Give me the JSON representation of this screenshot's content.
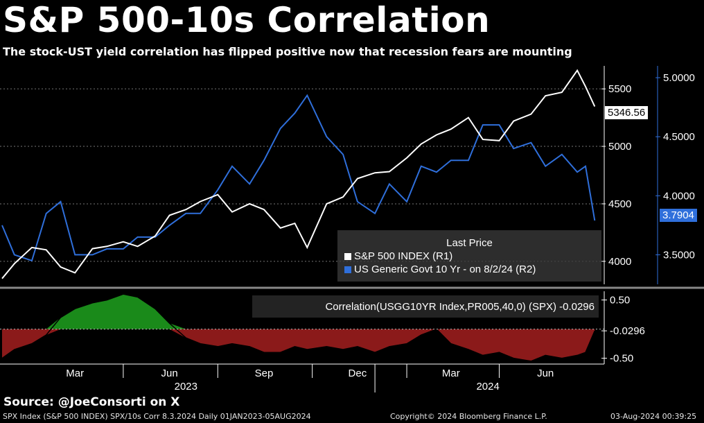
{
  "title": "S&P 500-10s Correlation",
  "subtitle": "The stock-UST yield correlation has flipped positive now that recession fears are mounting",
  "source": "Source: @JoeConsorti on X",
  "footer": {
    "left": "SPX Index (S&P 500 INDEX) SPX/10s Corr 8.3.2024  Daily 01JAN2023-05AUG2024",
    "center": "Copyright© 2024 Bloomberg Finance L.P.",
    "right": "03-Aug-2024 00:39:25"
  },
  "legend": {
    "heading": "Last Price",
    "items": [
      {
        "label": "S&P 500 INDEX  (R1)",
        "color": "#ffffff"
      },
      {
        "label": "US Generic Govt 10 Yr -   on 8/2/24  (R2)",
        "color": "#2f6fdb"
      }
    ]
  },
  "correlation_label": "Correlation(USGG10YR Index,PR005,40,0) (SPX) -0.0296",
  "last_values": {
    "spx": "5346.56",
    "ust10": "3.7904",
    "corr": "-0.0296"
  },
  "colors": {
    "spx": "#ffffff",
    "ust10": "#2f6fdb",
    "positive": "#1a8a1a",
    "negative": "#8b1a1a",
    "axis_right2": "#2f6fdb"
  },
  "chart_data": [
    {
      "type": "line",
      "title": "S&P 500-10s Correlation",
      "x": [
        "2023-01-03",
        "2023-01-15",
        "2023-02-01",
        "2023-02-15",
        "2023-03-01",
        "2023-03-15",
        "2023-04-01",
        "2023-04-15",
        "2023-05-01",
        "2023-05-15",
        "2023-06-01",
        "2023-06-15",
        "2023-07-01",
        "2023-07-15",
        "2023-08-01",
        "2023-08-15",
        "2023-09-01",
        "2023-09-15",
        "2023-10-01",
        "2023-10-15",
        "2023-10-27",
        "2023-11-15",
        "2023-12-01",
        "2023-12-15",
        "2024-01-01",
        "2024-01-15",
        "2024-02-01",
        "2024-02-15",
        "2024-03-01",
        "2024-03-15",
        "2024-04-01",
        "2024-04-15",
        "2024-05-01",
        "2024-05-15",
        "2024-06-01",
        "2024-06-15",
        "2024-07-01",
        "2024-07-16",
        "2024-07-24",
        "2024-08-02"
      ],
      "x_tick_labels": [
        "Mar",
        "Jun",
        "Sep",
        "Dec",
        "Mar",
        "Jun"
      ],
      "year_labels": [
        "2023",
        "2024"
      ],
      "series": [
        {
          "name": "S&P 500 INDEX  (R1)",
          "axis": "R1",
          "values": [
            3850,
            3980,
            4120,
            4100,
            3950,
            3900,
            4110,
            4130,
            4170,
            4130,
            4220,
            4400,
            4450,
            4520,
            4580,
            4430,
            4500,
            4450,
            4290,
            4330,
            4120,
            4500,
            4560,
            4720,
            4770,
            4780,
            4900,
            5020,
            5100,
            5150,
            5250,
            5060,
            5050,
            5220,
            5280,
            5440,
            5470,
            5660,
            5520,
            5346.56
          ]
        },
        {
          "name": "US Generic Govt 10 Yr -   on 8/2/24  (R2)",
          "axis": "R2",
          "values": [
            3.75,
            3.5,
            3.45,
            3.85,
            3.95,
            3.5,
            3.5,
            3.55,
            3.55,
            3.65,
            3.65,
            3.75,
            3.85,
            3.85,
            4.05,
            4.25,
            4.1,
            4.3,
            4.57,
            4.7,
            4.85,
            4.5,
            4.35,
            3.95,
            3.85,
            4.1,
            3.95,
            4.25,
            4.2,
            4.3,
            4.3,
            4.6,
            4.6,
            4.4,
            4.45,
            4.25,
            4.35,
            4.2,
            4.25,
            3.7904
          ]
        }
      ],
      "yaxis_right1": {
        "ticks": [
          4000,
          4500,
          5000,
          5500
        ],
        "ylim": [
          3800,
          5700
        ]
      },
      "yaxis_right2": {
        "ticks": [
          "3.5000",
          "4.0000",
          "4.5000",
          "5.0000"
        ],
        "ylim": [
          3.25,
          5.1
        ]
      }
    },
    {
      "type": "area",
      "series": [
        {
          "name": "Correlation(USGG10YR Index,PR005,40,0) (SPX)",
          "values": [
            -0.5,
            -0.35,
            -0.25,
            -0.1,
            0.2,
            0.35,
            0.45,
            0.5,
            0.6,
            0.55,
            0.35,
            0.1,
            -0.15,
            -0.25,
            -0.3,
            -0.25,
            -0.3,
            -0.4,
            -0.4,
            -0.3,
            -0.35,
            -0.3,
            -0.35,
            -0.3,
            -0.4,
            -0.3,
            -0.25,
            -0.1,
            0.0,
            -0.25,
            -0.35,
            -0.45,
            -0.4,
            -0.5,
            -0.55,
            -0.45,
            -0.5,
            -0.45,
            -0.4,
            -0.0296
          ]
        }
      ],
      "yaxis": {
        "ticks": [
          "0.50",
          "-0.0296",
          "-0.50"
        ],
        "ylim": [
          -0.6,
          0.65
        ]
      }
    }
  ]
}
